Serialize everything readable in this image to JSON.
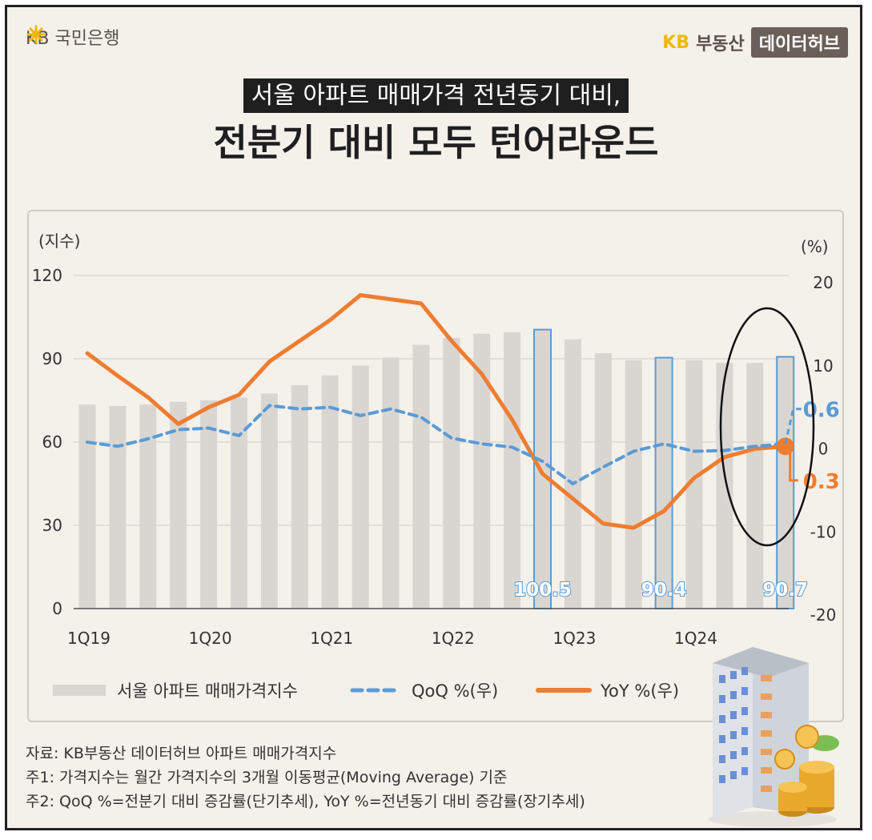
{
  "header": {
    "bank_logo": "KB 국민은행",
    "brand_kb": "KB",
    "brand_realty": "부동산",
    "brand_hub": "데이터허브",
    "title_line1": "서울 아파트 매매가격 전년동기 대비,",
    "title_line2": "전분기 대비 모두 턴어라운드"
  },
  "chart_data": {
    "type": "bar",
    "left_axis_unit": "(지수)",
    "right_axis_unit": "(%)",
    "left_ylim": [
      0,
      120
    ],
    "left_ticks": [
      "0",
      "30",
      "60",
      "90",
      "120"
    ],
    "right_ylim": [
      -20,
      20
    ],
    "right_ticks": [
      "-20",
      "-10",
      "0",
      "10",
      "20"
    ],
    "x_tick_labels": [
      {
        "label": "1Q19",
        "index": 0
      },
      {
        "label": "1Q20",
        "index": 4
      },
      {
        "label": "1Q21",
        "index": 8
      },
      {
        "label": "1Q22",
        "index": 12
      },
      {
        "label": "1Q23",
        "index": 16
      },
      {
        "label": "1Q24",
        "index": 20
      }
    ],
    "categories": [
      "1Q19",
      "2Q19",
      "3Q19",
      "4Q19",
      "1Q20",
      "2Q20",
      "3Q20",
      "4Q20",
      "1Q21",
      "2Q21",
      "3Q21",
      "4Q21",
      "1Q22",
      "2Q22",
      "3Q22",
      "4Q22",
      "1Q23",
      "2Q23",
      "3Q23",
      "4Q23",
      "1Q24",
      "2Q24",
      "3Q24",
      "4Q24"
    ],
    "series": [
      {
        "name": "서울 아파트 매매가격지수",
        "axis": "left",
        "type": "bar",
        "color": "#d9d6d2",
        "values": [
          73.5,
          73.0,
          73.5,
          74.5,
          75.0,
          76.0,
          77.5,
          80.5,
          84.0,
          87.5,
          90.5,
          95.0,
          97.5,
          99.0,
          99.5,
          100.5,
          97.0,
          92.0,
          89.5,
          90.4,
          89.5,
          88.5,
          88.5,
          90.7
        ],
        "highlighted": [
          {
            "index": 15,
            "label": "100.5"
          },
          {
            "index": 19,
            "label": "90.4"
          },
          {
            "index": 23,
            "label": "90.7"
          }
        ]
      },
      {
        "name": "QoQ %(우)",
        "axis": "right",
        "type": "line",
        "style": "dashed",
        "color": "#5b9bd5",
        "values": [
          0.8,
          0.3,
          1.2,
          2.3,
          2.5,
          1.6,
          5.2,
          4.8,
          5.0,
          4.0,
          4.8,
          3.8,
          1.3,
          0.6,
          0.2,
          -1.5,
          -4.2,
          -2.2,
          -0.3,
          0.6,
          -0.3,
          -0.2,
          0.3,
          0.6
        ],
        "end_label": "0.6"
      },
      {
        "name": "YoY %(우)",
        "axis": "right",
        "type": "line",
        "color": "#ee7d31",
        "values": [
          11.5,
          8.8,
          6.2,
          3.0,
          5.0,
          6.5,
          10.5,
          13.0,
          15.5,
          18.5,
          18.0,
          17.5,
          13.0,
          9.0,
          3.5,
          -3.0,
          -6.0,
          -9.0,
          -9.5,
          -7.5,
          -3.5,
          -1.0,
          0.0,
          0.3
        ],
        "end_label": "0.3"
      }
    ],
    "legend": [
      "서울 아파트 매매가격지수",
      "QoQ %(우)",
      "YoY %(우)"
    ],
    "legend_position": "bottom"
  },
  "notes": [
    "자료: KB부동산 데이터허브 아파트 매매가격지수",
    "주1: 가격지수는 월간 가격지수의 3개월 이동평균(Moving Average) 기준",
    "주2: QoQ %=전분기 대비 증감률(단기추세), YoY %=전년동기 대비 증감률(장기추세)"
  ],
  "colors": {
    "bar": "#d9d6d2",
    "highlight": "#5b9bd5",
    "qoq": "#5b9bd5",
    "yoy": "#ee7d31",
    "background": "#f4f0ea"
  },
  "icons": [
    "star-icon",
    "building-icon",
    "coin-icon"
  ]
}
